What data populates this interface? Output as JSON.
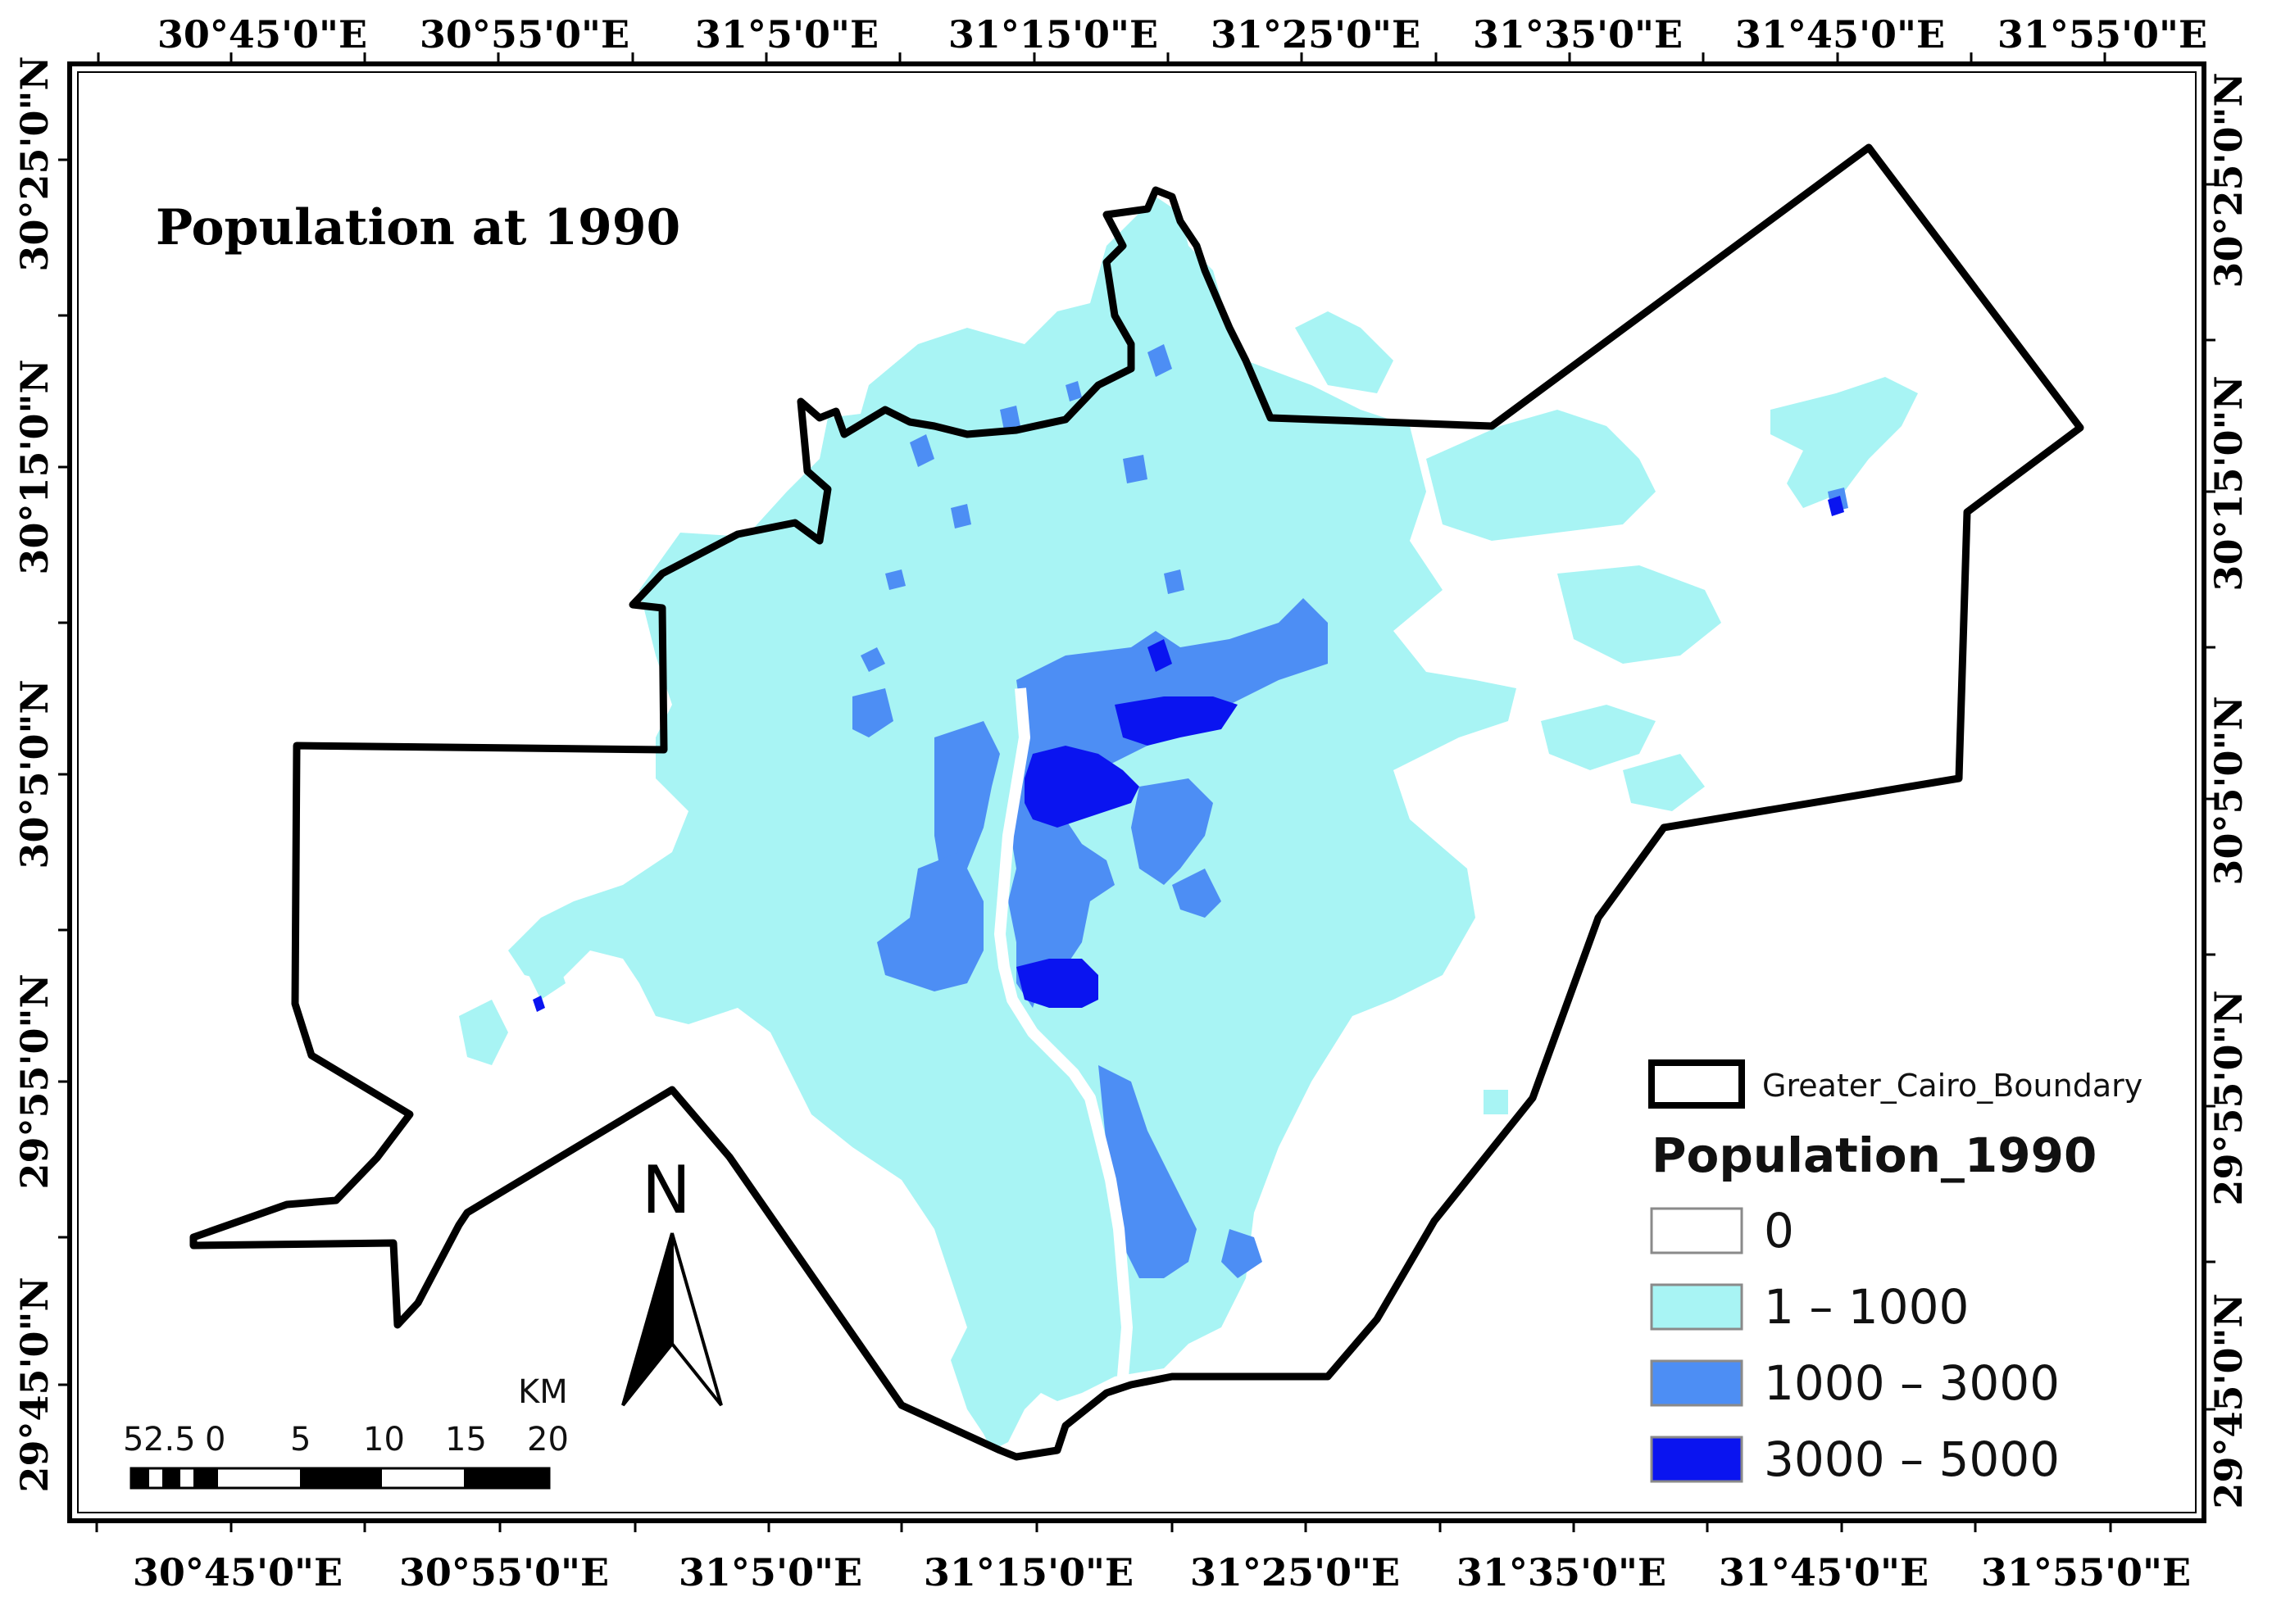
{
  "map": {
    "title": "Population at 1990",
    "top_labels": [
      "30°45'0\"E",
      "30°55'0\"E",
      "31°5'0\"E",
      "31°15'0\"E",
      "31°25'0\"E",
      "31°35'0\"E",
      "31°45'0\"E",
      "31°55'0\"E"
    ],
    "bottom_labels": [
      "30°45'0\"E",
      "30°55'0\"E",
      "31°5'0\"E",
      "31°15'0\"E",
      "31°25'0\"E",
      "31°35'0\"E",
      "31°45'0\"E",
      "31°55'0\"E"
    ],
    "left_labels": [
      "30°25'0\"N",
      "30°15'0\"N",
      "30°5'0\"N",
      "29°55'0\"N",
      "29°45'0\"N"
    ],
    "right_labels": [
      "30°25'0\"N",
      "30°15'0\"N",
      "30°5'0\"N",
      "29°55'0\"N",
      "29°45'0\"N"
    ]
  },
  "legend": {
    "boundary_label": "Greater_Cairo_Boundary",
    "title": "Population_1990",
    "classes": [
      {
        "label": "0",
        "color": "#ffffff"
      },
      {
        "label": "1 – 1000",
        "color": "#a8f4f4"
      },
      {
        "label": "1000 – 3000",
        "color": "#4d8ef4"
      },
      {
        "label": "3000 – 5000",
        "color": "#0a14f0"
      }
    ]
  },
  "north_arrow": {
    "label": "N"
  },
  "scale_bar": {
    "unit": "KM",
    "labels": [
      "5",
      "2.5",
      "0",
      "5",
      "10",
      "15",
      "20"
    ]
  }
}
